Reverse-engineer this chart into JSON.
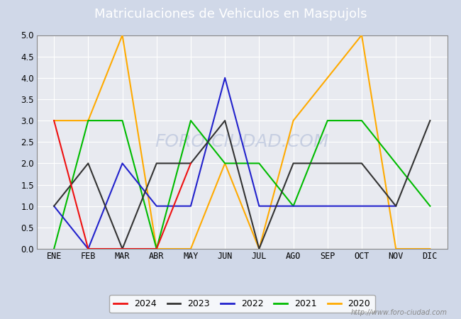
{
  "title": "Matriculaciones de Vehiculos en Maspujols",
  "months": [
    "ENE",
    "FEB",
    "MAR",
    "ABR",
    "MAY",
    "JUN",
    "JUL",
    "AGO",
    "SEP",
    "OCT",
    "NOV",
    "DIC"
  ],
  "series": {
    "2024": {
      "values": [
        3,
        0,
        0,
        0,
        2,
        null,
        null,
        null,
        null,
        null,
        null,
        null
      ],
      "color": "#ee1111"
    },
    "2023": {
      "values": [
        1,
        2,
        0,
        2,
        2,
        3,
        0,
        2,
        2,
        2,
        1,
        3
      ],
      "color": "#333333"
    },
    "2022": {
      "values": [
        1,
        0,
        2,
        1,
        1,
        4,
        1,
        1,
        1,
        1,
        1,
        null
      ],
      "color": "#2222cc"
    },
    "2021": {
      "values": [
        0,
        3,
        3,
        0,
        3,
        2,
        2,
        1,
        3,
        3,
        2,
        1
      ],
      "color": "#00bb00"
    },
    "2020": {
      "values": [
        3,
        3,
        5,
        0,
        0,
        2,
        0,
        3,
        4,
        5,
        0,
        0
      ],
      "color": "#ffaa00"
    }
  },
  "ylim": [
    0,
    5.0
  ],
  "yticks": [
    0.0,
    0.5,
    1.0,
    1.5,
    2.0,
    2.5,
    3.0,
    3.5,
    4.0,
    4.5,
    5.0
  ],
  "outer_bg": "#d0d8e8",
  "plot_bg": "#e8eaf0",
  "grid_color": "#ffffff",
  "title_bg_color": "#5577bb",
  "title_text_color": "#ffffff",
  "title_fontsize": 13,
  "watermark_text": "http://www.foro-ciudad.com",
  "watermark_plot": "FORO-CIUDAD.COM",
  "legend_years": [
    "2024",
    "2023",
    "2022",
    "2021",
    "2020"
  ],
  "linewidth": 1.5
}
